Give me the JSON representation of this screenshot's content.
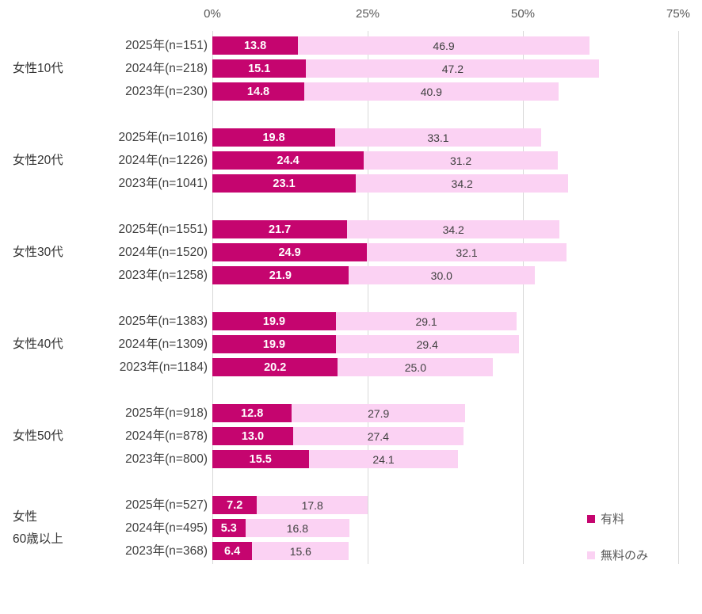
{
  "chart_data": {
    "type": "bar",
    "orientation": "horizontal",
    "stacked": true,
    "title": "",
    "xlabel": "",
    "ylabel": "",
    "xlim": [
      0,
      75
    ],
    "grid": "vertical-only",
    "legend_position": "right-bottom",
    "axis": {
      "tick_values": [
        0,
        25,
        50,
        75
      ],
      "tick_labels": [
        "0%",
        "25%",
        "50%",
        "75%"
      ]
    },
    "series": [
      {
        "name": "有料",
        "color": "#c5056f",
        "label_color": "#ffffff"
      },
      {
        "name": "無料のみ",
        "color": "#fbd2f3",
        "label_color": "#404040"
      }
    ],
    "groups": [
      {
        "label_lines": [
          "女性10代"
        ],
        "rows": [
          {
            "label": "2025年(n=151)",
            "values": [
              13.8,
              46.9
            ]
          },
          {
            "label": "2024年(n=218)",
            "values": [
              15.1,
              47.2
            ]
          },
          {
            "label": "2023年(n=230)",
            "values": [
              14.8,
              40.9
            ]
          }
        ]
      },
      {
        "label_lines": [
          "女性20代"
        ],
        "rows": [
          {
            "label": "2025年(n=1016)",
            "values": [
              19.8,
              33.1
            ]
          },
          {
            "label": "2024年(n=1226)",
            "values": [
              24.4,
              31.2
            ]
          },
          {
            "label": "2023年(n=1041)",
            "values": [
              23.1,
              34.2
            ]
          }
        ]
      },
      {
        "label_lines": [
          "女性30代"
        ],
        "rows": [
          {
            "label": "2025年(n=1551)",
            "values": [
              21.7,
              34.2
            ]
          },
          {
            "label": "2024年(n=1520)",
            "values": [
              24.9,
              32.1
            ]
          },
          {
            "label": "2023年(n=1258)",
            "values": [
              21.9,
              30.0
            ]
          }
        ]
      },
      {
        "label_lines": [
          "女性40代"
        ],
        "rows": [
          {
            "label": "2025年(n=1383)",
            "values": [
              19.9,
              29.1
            ]
          },
          {
            "label": "2024年(n=1309)",
            "values": [
              19.9,
              29.4
            ]
          },
          {
            "label": "2023年(n=1184)",
            "values": [
              20.2,
              25.0
            ]
          }
        ]
      },
      {
        "label_lines": [
          "女性50代"
        ],
        "rows": [
          {
            "label": "2025年(n=918)",
            "values": [
              12.8,
              27.9
            ]
          },
          {
            "label": "2024年(n=878)",
            "values": [
              13.0,
              27.4
            ]
          },
          {
            "label": "2023年(n=800)",
            "values": [
              15.5,
              24.1
            ]
          }
        ]
      },
      {
        "label_lines": [
          "女性",
          "60歳以上"
        ],
        "rows": [
          {
            "label": "2025年(n=527)",
            "values": [
              7.2,
              17.8
            ]
          },
          {
            "label": "2024年(n=495)",
            "values": [
              5.3,
              16.8
            ]
          },
          {
            "label": "2023年(n=368)",
            "values": [
              6.4,
              15.6
            ]
          }
        ]
      }
    ]
  },
  "legend": {
    "items": [
      {
        "label": "有料"
      },
      {
        "label": "無料のみ"
      }
    ]
  }
}
